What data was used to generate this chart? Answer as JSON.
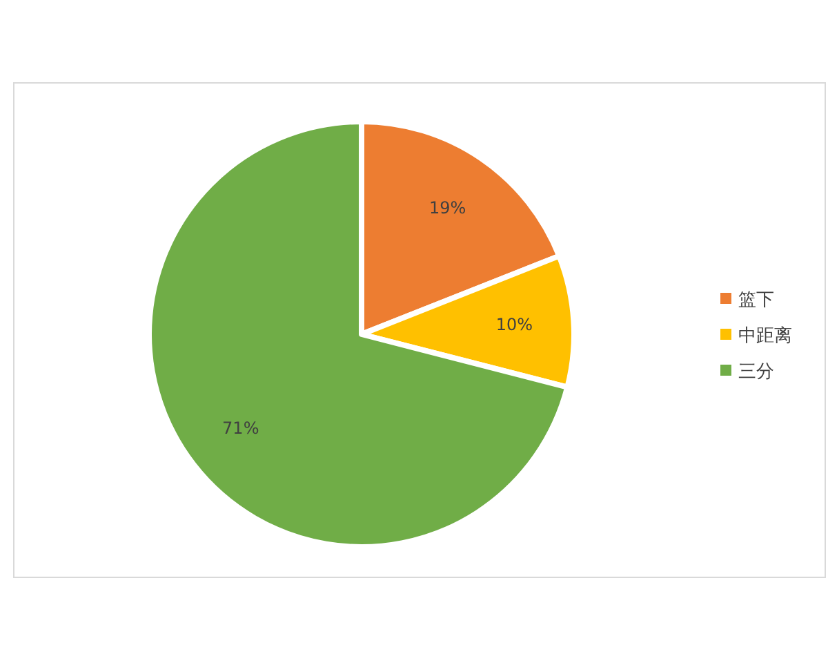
{
  "chart_data": {
    "type": "pie",
    "categories": [
      "篮下",
      "中距离",
      "三分"
    ],
    "values": [
      19,
      10,
      71
    ],
    "colors": [
      "#ed7d31",
      "#ffc000",
      "#70ad47"
    ],
    "value_labels": [
      "19%",
      "10%",
      "71%"
    ],
    "legend": "right"
  }
}
